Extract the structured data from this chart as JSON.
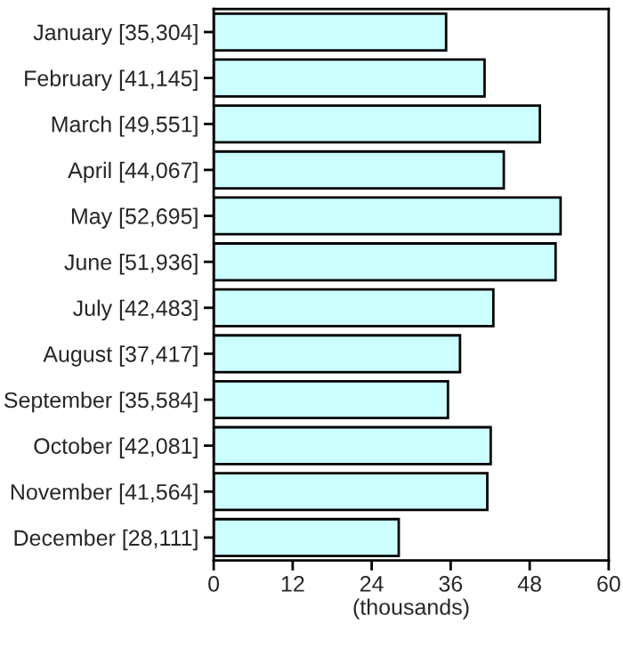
{
  "chart_data": {
    "type": "bar",
    "orientation": "horizontal",
    "xlabel": "(thousands)",
    "categories": [
      "January [35,304]",
      "February [41,145]",
      "March [49,551]",
      "April [44,067]",
      "May [52,695]",
      "June [51,936]",
      "July [42,483]",
      "August [37,417]",
      "September [35,584]",
      "October [42,081]",
      "November [41,564]",
      "December [28,111]"
    ],
    "values": [
      35.304,
      41.145,
      49.551,
      44.067,
      52.695,
      51.936,
      42.483,
      37.417,
      35.584,
      42.081,
      41.564,
      28.111
    ],
    "color": "#ccffff",
    "xlim": [
      0,
      60
    ],
    "xticks": [
      0,
      12,
      24,
      36,
      48,
      60
    ],
    "grid": false,
    "legend": false
  }
}
